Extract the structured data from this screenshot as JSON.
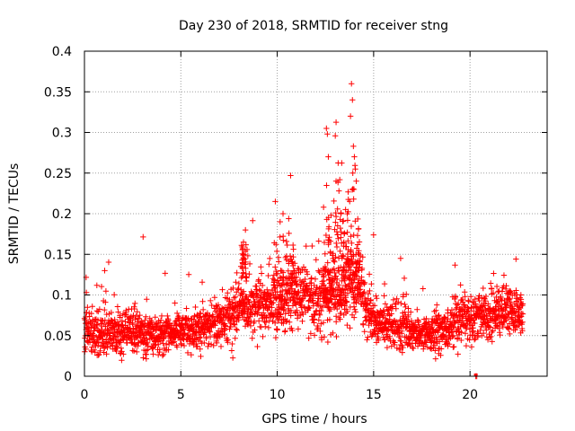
{
  "chart_data": {
    "type": "scatter",
    "title": "Day 230 of 2018, SRMTID for receiver stng",
    "xlabel": "GPS time / hours",
    "ylabel": "SRMTID / TECUs",
    "xlim": [
      0,
      24
    ],
    "ylim": [
      0,
      0.4
    ],
    "x_ticks": [
      "0",
      "5",
      "10",
      "15",
      "20"
    ],
    "y_ticks": [
      "0",
      "0.05",
      "0.1",
      "0.15",
      "0.2",
      "0.25",
      "0.3",
      "0.35",
      "0.4"
    ],
    "grid": true,
    "marker": "+",
    "color": "#ff0000",
    "time_range_hours": [
      0,
      22.75
    ],
    "series": [
      {
        "name": "SRMTID",
        "baseline_profile": {
          "x": [
            0,
            2,
            3.5,
            5,
            6,
            7,
            8,
            9,
            10,
            11,
            12,
            13,
            13.5,
            14,
            14.5,
            15,
            16,
            17,
            18,
            19,
            20,
            21,
            22,
            22.75
          ],
          "median": [
            0.055,
            0.055,
            0.05,
            0.055,
            0.06,
            0.065,
            0.08,
            0.09,
            0.085,
            0.1,
            0.095,
            0.1,
            0.11,
            0.12,
            0.09,
            0.07,
            0.06,
            0.055,
            0.05,
            0.06,
            0.075,
            0.075,
            0.08,
            0.075
          ],
          "spread": [
            0.025,
            0.025,
            0.02,
            0.02,
            0.02,
            0.025,
            0.03,
            0.03,
            0.03,
            0.035,
            0.035,
            0.04,
            0.05,
            0.06,
            0.035,
            0.025,
            0.025,
            0.02,
            0.02,
            0.025,
            0.025,
            0.025,
            0.025,
            0.025
          ]
        },
        "notable_points": [
          {
            "x": 0.1,
            "y": 0.103
          },
          {
            "x": 1.05,
            "y": 0.13
          },
          {
            "x": 8.25,
            "y": 0.165
          },
          {
            "x": 8.35,
            "y": 0.18
          },
          {
            "x": 9.9,
            "y": 0.215
          },
          {
            "x": 10.3,
            "y": 0.2
          },
          {
            "x": 10.15,
            "y": 0.19
          },
          {
            "x": 12.55,
            "y": 0.305
          },
          {
            "x": 12.6,
            "y": 0.298
          },
          {
            "x": 12.65,
            "y": 0.27
          },
          {
            "x": 13.05,
            "y": 0.24
          },
          {
            "x": 13.2,
            "y": 0.228
          },
          {
            "x": 13.3,
            "y": 0.2
          },
          {
            "x": 13.85,
            "y": 0.36
          },
          {
            "x": 13.9,
            "y": 0.34
          },
          {
            "x": 13.8,
            "y": 0.32
          },
          {
            "x": 13.95,
            "y": 0.283
          },
          {
            "x": 14.0,
            "y": 0.27
          },
          {
            "x": 14.05,
            "y": 0.255
          },
          {
            "x": 13.92,
            "y": 0.25
          },
          {
            "x": 14.1,
            "y": 0.24
          },
          {
            "x": 13.98,
            "y": 0.23
          },
          {
            "x": 16.4,
            "y": 0.145
          },
          {
            "x": 20.3,
            "y": 0.0
          },
          {
            "x": 20.35,
            "y": 0.0
          }
        ]
      }
    ]
  }
}
